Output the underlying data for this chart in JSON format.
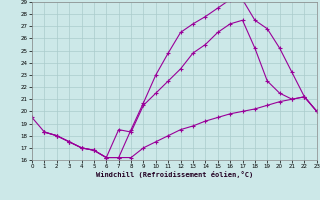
{
  "background_color": "#cce8e8",
  "grid_color": "#aacccc",
  "line_color": "#990099",
  "xlim": [
    0,
    23
  ],
  "ylim": [
    16,
    29
  ],
  "xlabel": "Windchill (Refroidissement éolien,°C)",
  "xticks": [
    0,
    1,
    2,
    3,
    4,
    5,
    6,
    7,
    8,
    9,
    10,
    11,
    12,
    13,
    14,
    15,
    16,
    17,
    18,
    19,
    20,
    21,
    22,
    23
  ],
  "yticks": [
    16,
    17,
    18,
    19,
    20,
    21,
    22,
    23,
    24,
    25,
    26,
    27,
    28,
    29
  ],
  "line1_x": [
    0,
    1,
    2,
    3,
    4,
    5,
    6,
    7,
    8,
    9,
    10,
    11,
    12,
    13,
    14,
    15,
    16,
    17,
    18,
    19,
    20,
    21,
    22,
    23
  ],
  "line1_y": [
    19.5,
    18.3,
    18.0,
    17.5,
    17.0,
    16.8,
    16.2,
    16.2,
    18.5,
    20.7,
    23.0,
    24.8,
    26.5,
    27.2,
    27.8,
    28.5,
    29.2,
    29.2,
    27.5,
    26.8,
    25.2,
    23.2,
    21.2,
    20.0
  ],
  "line2_x": [
    1,
    2,
    3,
    4,
    5,
    6,
    7,
    8,
    9,
    10,
    11,
    12,
    13,
    14,
    15,
    16,
    17,
    18,
    19,
    20,
    21,
    22,
    23
  ],
  "line2_y": [
    18.3,
    18.0,
    17.5,
    17.0,
    16.8,
    16.2,
    18.5,
    18.3,
    20.5,
    21.5,
    22.5,
    23.5,
    24.8,
    25.5,
    26.5,
    27.2,
    27.5,
    25.2,
    22.5,
    21.5,
    21.0,
    21.2,
    20.0
  ],
  "line3_x": [
    1,
    2,
    3,
    4,
    5,
    6,
    7,
    8,
    9,
    10,
    11,
    12,
    13,
    14,
    15,
    16,
    17,
    18,
    19,
    20,
    21,
    22,
    23
  ],
  "line3_y": [
    18.3,
    18.0,
    17.5,
    17.0,
    16.8,
    16.2,
    16.2,
    16.2,
    17.0,
    17.5,
    18.0,
    18.5,
    18.8,
    19.2,
    19.5,
    19.8,
    20.0,
    20.2,
    20.5,
    20.8,
    21.0,
    21.2,
    20.0
  ]
}
